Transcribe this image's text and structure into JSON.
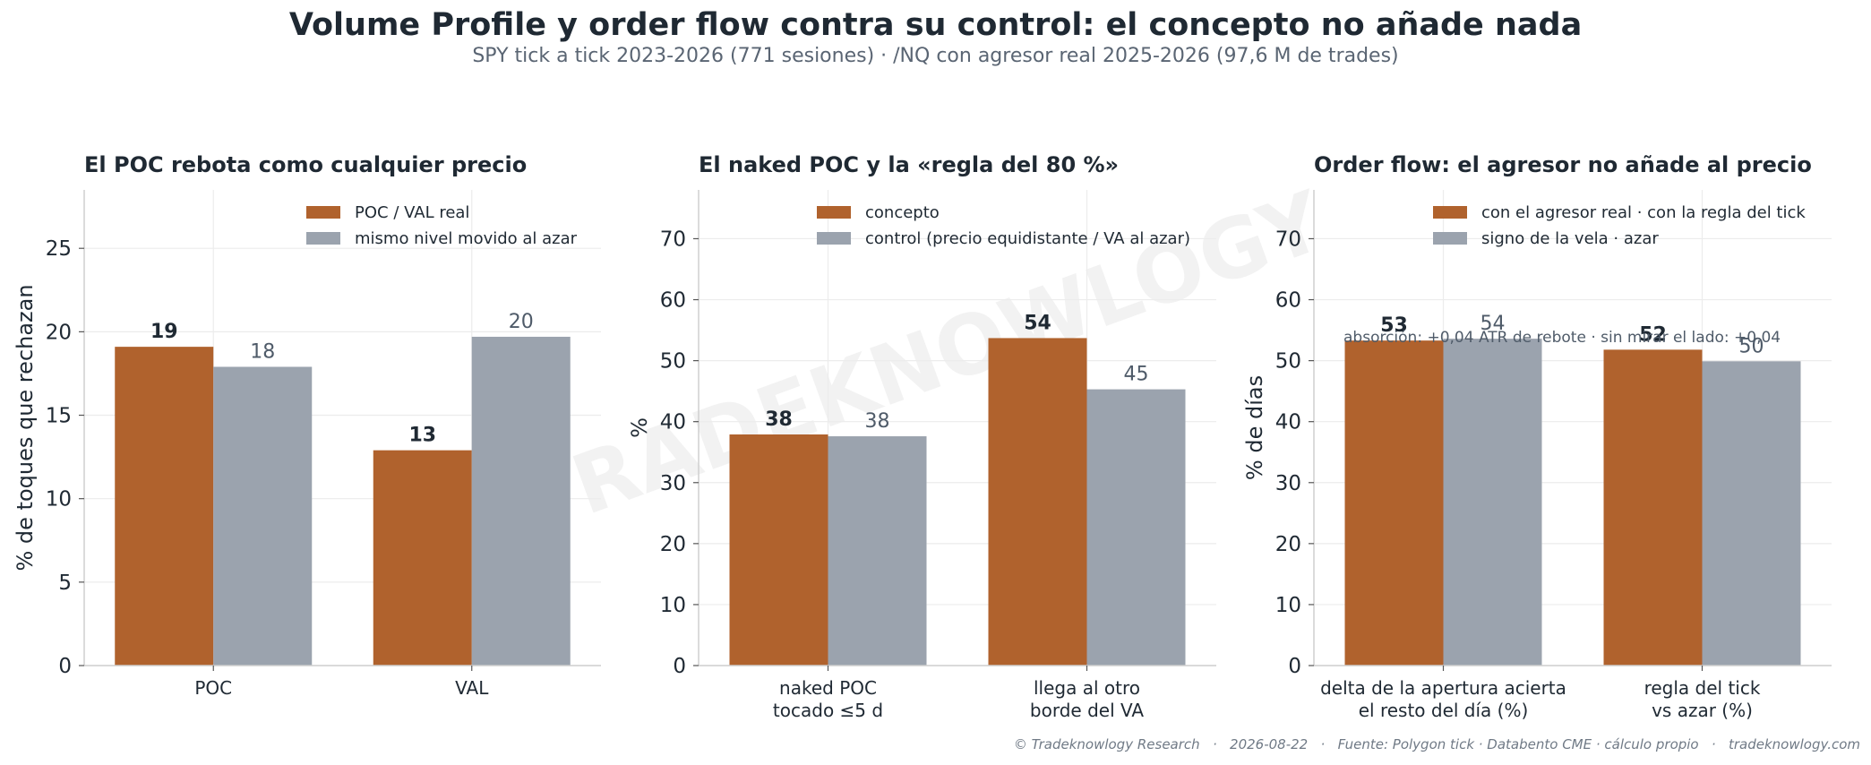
{
  "title": "Volume Profile y order flow contra su control: el concepto no añade nada",
  "subtitle": "SPY tick a tick 2023-2026 (771 sesiones) · /NQ con agresor real 2025-2026 (97,6 M de trades)",
  "watermark": "TRADEKNOWLOGY",
  "footer": "© Tradeknowlogy Research   ·   2026-08-22   ·   Fuente: Polygon tick · Databento CME · cálculo propio   ·   tradeknowlogy.com",
  "colors": {
    "concept": "#b0622d",
    "control": "#9ba3ae",
    "grid": "#ececec",
    "axis": "#cfcfcf"
  },
  "chart_data": [
    {
      "type": "bar",
      "title": "El POC rebota como cualquier precio",
      "ylabel": "% de toques que rechazan",
      "ylim": [
        0,
        28.5
      ],
      "yticks": [
        0,
        5,
        10,
        15,
        20,
        25
      ],
      "categories": [
        "POC",
        "VAL"
      ],
      "series": [
        {
          "name": "POC / VAL real",
          "values": [
            19.1,
            12.9
          ],
          "labels": [
            "19",
            "13"
          ]
        },
        {
          "name": "mismo nivel movido al azar",
          "values": [
            17.9,
            19.7
          ],
          "labels": [
            "18",
            "20"
          ]
        }
      ],
      "legend": "top-right",
      "grid": true
    },
    {
      "type": "bar",
      "title": "El naked POC y la «regla del 80 %»",
      "ylabel": "%",
      "ylim": [
        0,
        78
      ],
      "yticks": [
        0,
        10,
        20,
        30,
        40,
        50,
        60,
        70
      ],
      "categories": [
        "naked POC\ntocado ≤5 d",
        "llega al otro\nborde del VA"
      ],
      "series": [
        {
          "name": "concepto",
          "values": [
            37.9,
            53.7
          ],
          "labels": [
            "38",
            "54"
          ]
        },
        {
          "name": "control (precio equidistante / VA al azar)",
          "values": [
            37.6,
            45.3
          ],
          "labels": [
            "38",
            "45"
          ]
        }
      ],
      "legend": "top-right",
      "grid": true
    },
    {
      "type": "bar",
      "title": "Order flow: el agresor no añade al precio",
      "ylabel": "% de días",
      "ylim": [
        0,
        78
      ],
      "yticks": [
        0,
        10,
        20,
        30,
        40,
        50,
        60,
        70
      ],
      "categories": [
        "delta de la apertura acierta\nel resto del día (%)",
        "regla del tick\nvs azar (%)"
      ],
      "series": [
        {
          "name": "con el agresor real · con la regla del tick",
          "values": [
            53.3,
            51.8
          ],
          "labels": [
            "53",
            "52"
          ]
        },
        {
          "name": "signo de la vela · azar",
          "values": [
            53.6,
            49.9
          ],
          "labels": [
            "54",
            "50"
          ]
        }
      ],
      "annotation": "absorción: +0,04 ATR de rebote · sin mirar el lado: +0,04",
      "legend": "top-right",
      "grid": true
    }
  ]
}
